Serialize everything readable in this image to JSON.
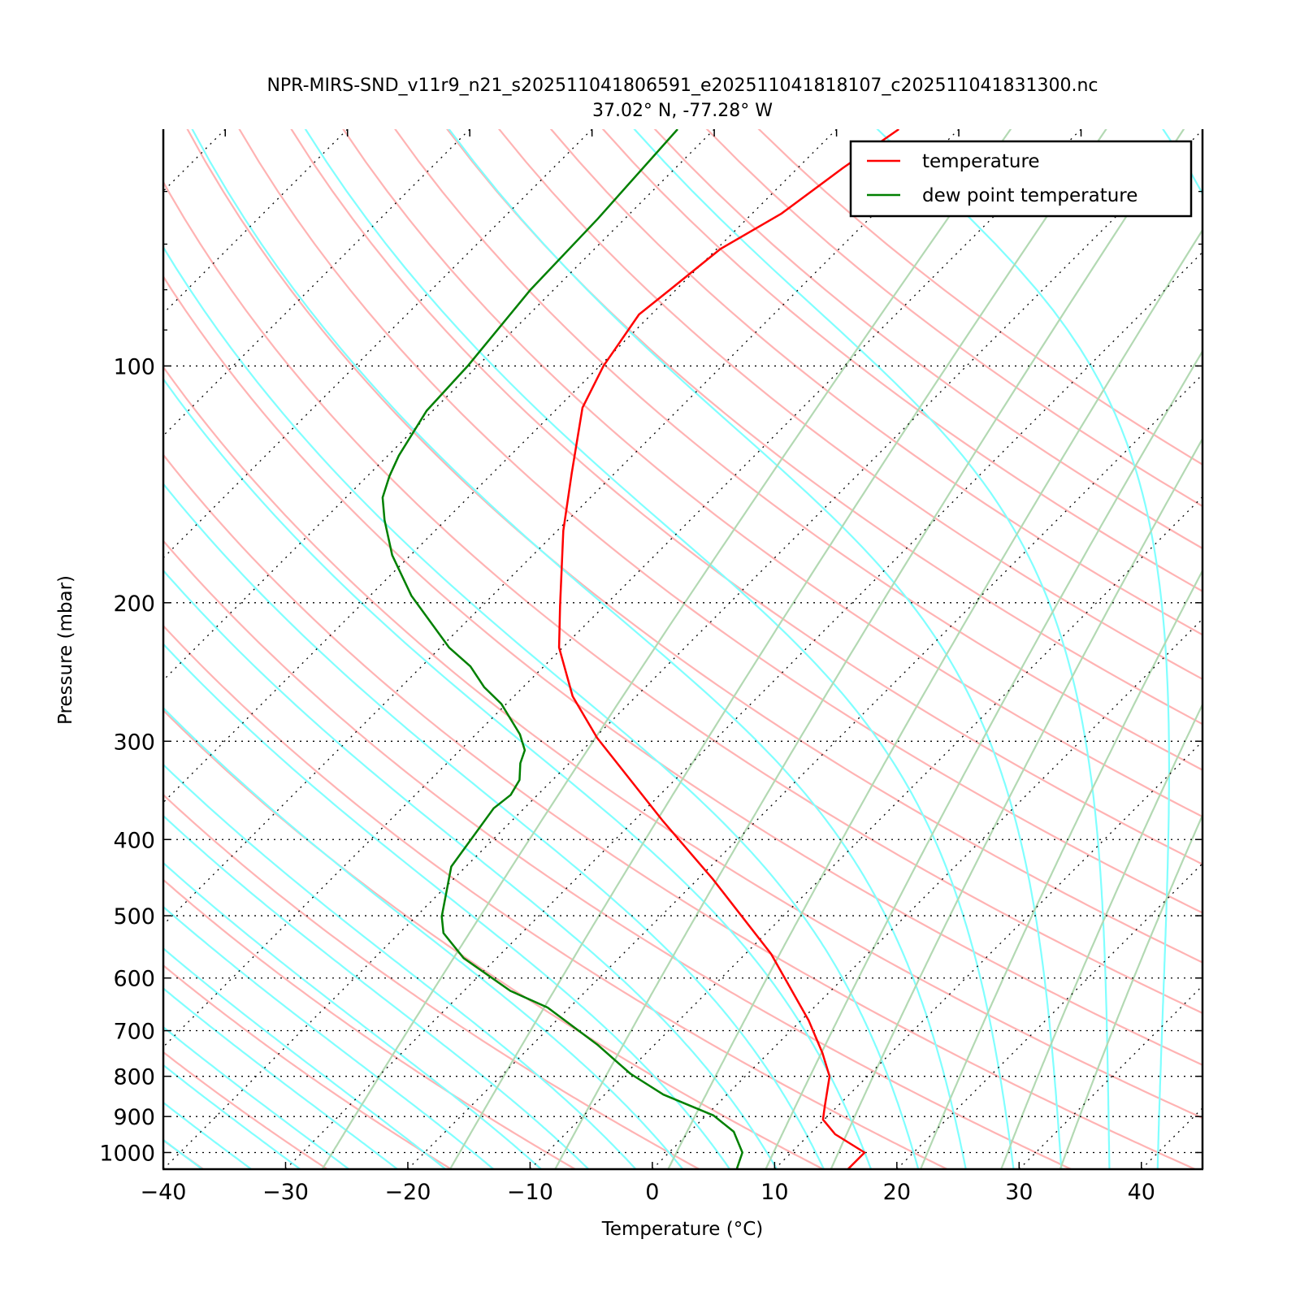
{
  "chart_data": {
    "type": "line",
    "subtype": "skew-T log-P diagram",
    "title": "NPR-MIRS-SND_v11r9_n21_s202511041806591_e202511041818107_c202511041831300.nc",
    "subtitle": "37.02° N, -77.28° W",
    "xlabel": "Temperature (°C)",
    "ylabel": "Pressure (mbar)",
    "xlim": [
      -40,
      45
    ],
    "ylim": [
      1050,
      50
    ],
    "y_scale": "log",
    "x_ticks": [
      -40,
      -30,
      -20,
      -10,
      0,
      10,
      20,
      30,
      40
    ],
    "x_tick_labels": [
      "−40",
      "−30",
      "−20",
      "−10",
      "0",
      "10",
      "20",
      "30",
      "40"
    ],
    "y_ticks": [
      100,
      200,
      300,
      400,
      500,
      600,
      700,
      800,
      900,
      1000
    ],
    "y_tick_labels": [
      "100",
      "200",
      "300",
      "400",
      "500",
      "600",
      "700",
      "800",
      "900",
      "1000"
    ],
    "y_minor_ticks": [
      60,
      70,
      80,
      90
    ],
    "grid": true,
    "legend_placement": "top-right",
    "series": [
      {
        "name": "temperature",
        "color": "#ff0000",
        "pressure": [
          1050,
          1000,
          948,
          908,
          875,
          800,
          747,
          679,
          559,
          449,
          379,
          297,
          263,
          228,
          202,
          162,
          137,
          113,
          100,
          86,
          80,
          71,
          64,
          56,
          50
        ],
        "temperature": [
          16.0,
          16.0,
          12.1,
          9.9,
          9.0,
          6.9,
          4.4,
          0.6,
          -7.9,
          -18.8,
          -27.6,
          -39.8,
          -45.2,
          -50.3,
          -53.6,
          -59.5,
          -63.5,
          -68.0,
          -69.7,
          -71.0,
          -70.5,
          -69.7,
          -67.6,
          -66.3,
          -64.9
        ]
      },
      {
        "name": "dew point temperature",
        "color": "#008000",
        "pressure": [
          1050,
          1000,
          941,
          897,
          844,
          794,
          729,
          654,
          623,
          566,
          526,
          501,
          433,
          365,
          351,
          336,
          320,
          308,
          294,
          269,
          256,
          241,
          228,
          196,
          174,
          157,
          147,
          138,
          130,
          114,
          100,
          80,
          65,
          50
        ],
        "temperature": [
          6.9,
          6.0,
          3.6,
          0.6,
          -5.2,
          -9.6,
          -14.7,
          -21.8,
          -26.2,
          -32.7,
          -36.4,
          -37.9,
          -41.2,
          -42.5,
          -42.2,
          -42.7,
          -44.0,
          -44.7,
          -46.4,
          -50.4,
          -53.2,
          -56.0,
          -59.3,
          -66.6,
          -71.5,
          -75.0,
          -77.0,
          -78.2,
          -79.1,
          -80.5,
          -80.8,
          -81.9,
          -82.2,
          -83.0
        ]
      }
    ],
    "background": {
      "dry_adiabats_t0_at_1000mb": [
        -50,
        -40,
        -30,
        -20,
        -10,
        0,
        10,
        20,
        30,
        40,
        50,
        60,
        70,
        80,
        90,
        100,
        110,
        120,
        130,
        140,
        150,
        160,
        170,
        180,
        190
      ],
      "moist_adiabats_t0_at_1000mb": [
        -40,
        -36,
        -32,
        -28,
        -24,
        -20,
        -16,
        -12,
        -8,
        -4,
        0,
        4,
        8,
        12,
        16,
        20,
        24,
        28,
        32,
        36,
        40,
        44
      ],
      "mixing_ratios": [
        0.0004,
        0.001,
        0.002,
        0.004,
        0.007,
        0.01,
        0.016,
        0.024,
        0.032
      ],
      "isotherm_spacing": 10,
      "colors": {
        "dry_adiabat": "#ffb3b3",
        "moist_adiabat": "#80ffff",
        "mixing_ratio": "#b3d9b3",
        "isotherm": "#000000"
      }
    }
  }
}
